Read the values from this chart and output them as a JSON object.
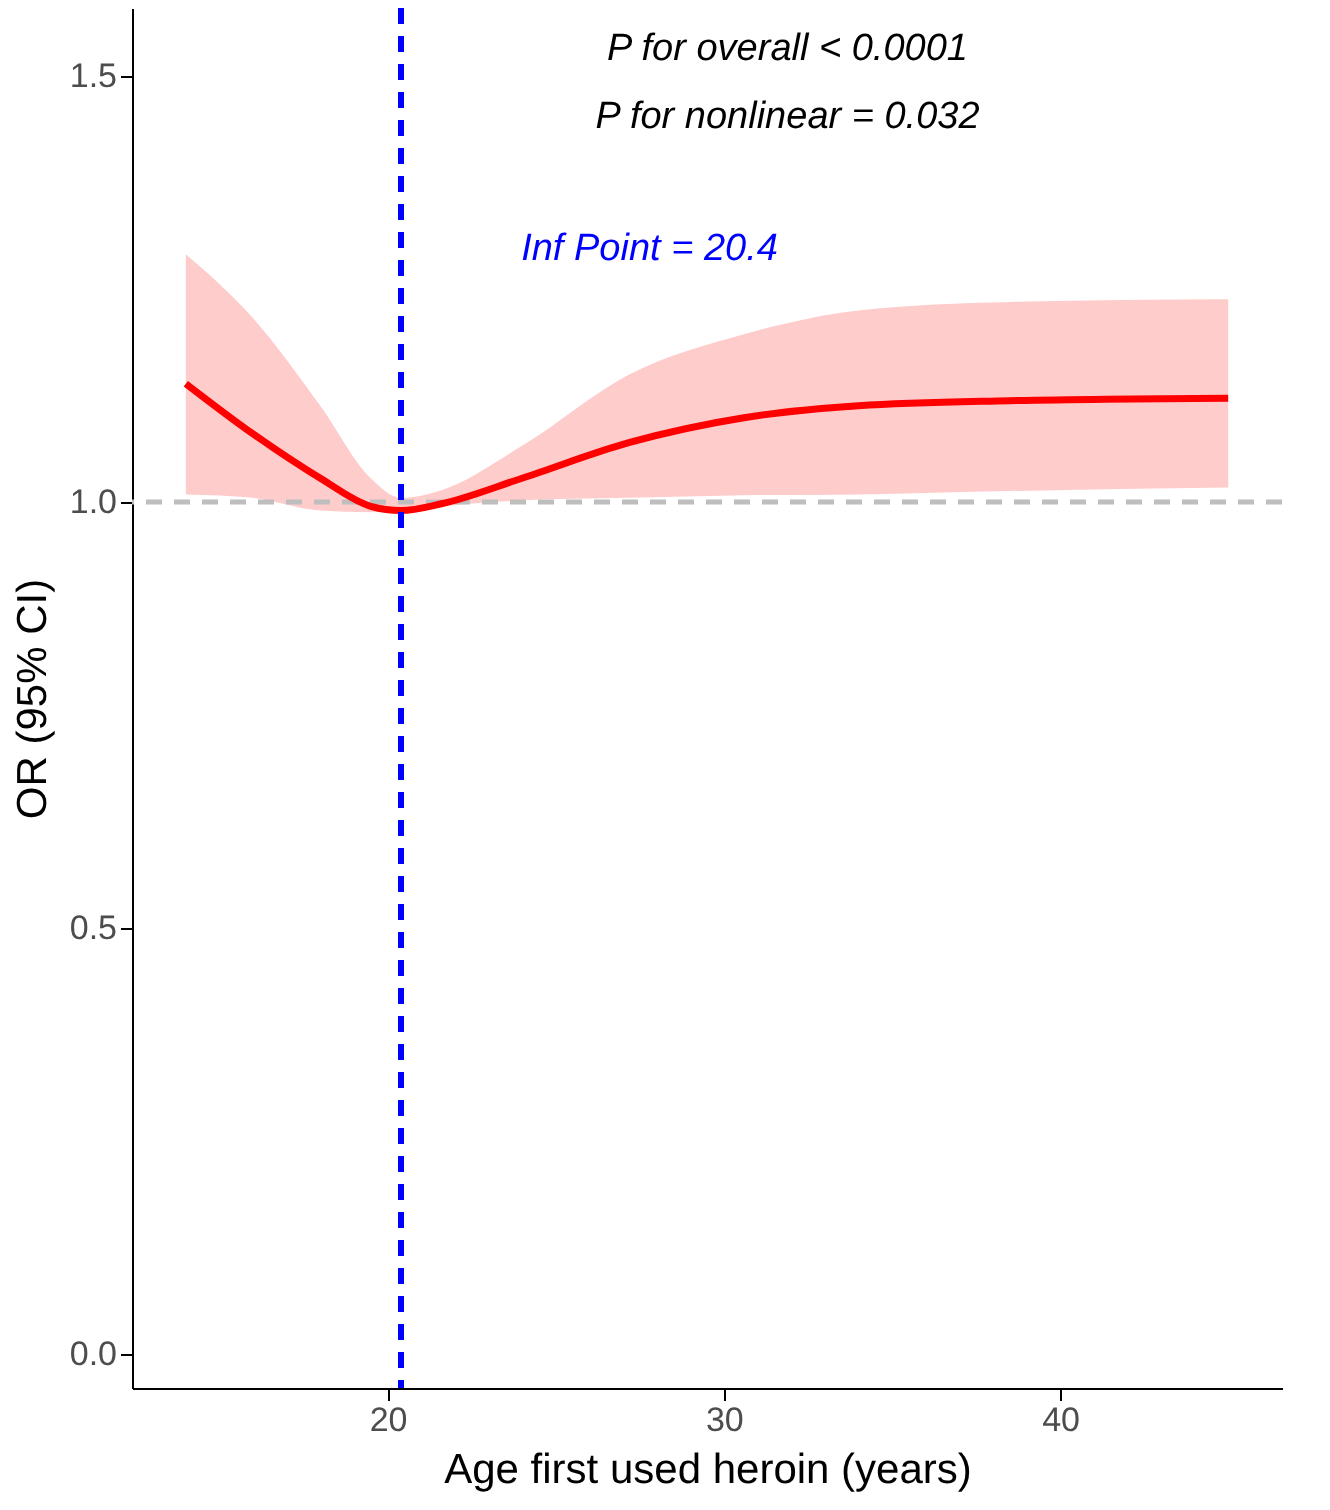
{
  "chart_data": {
    "type": "line",
    "xlabel": "Age first used heroin (years)",
    "ylabel": "OR (95% CI)",
    "x": [
      14,
      16,
      18,
      19.5,
      20.4,
      21.6,
      24,
      27.2,
      30.6,
      34,
      38.5,
      45
    ],
    "series": [
      {
        "color": "#ff0000",
        "values": [
          1.139,
          1.08,
          1.028,
          0.995,
          0.99,
          0.998,
          1.028,
          1.07,
          1.099,
          1.113,
          1.119,
          1.122
        ],
        "lower": [
          1.009,
          1.005,
          0.99,
          0.988,
          0.99,
          0.995,
          1.002,
          1.005,
          1.008,
          1.009,
          1.013,
          1.017
        ],
        "upper": [
          1.291,
          1.216,
          1.113,
          1.028,
          1.005,
          1.014,
          1.066,
          1.15,
          1.197,
          1.225,
          1.235,
          1.238
        ]
      }
    ],
    "xlim": [
      12.4,
      46.6
    ],
    "xticks": [
      20,
      30,
      40
    ],
    "ylim": [
      -0.04,
      1.58
    ],
    "yticks": [
      {
        "value": 0,
        "label": "0.0"
      },
      0.5,
      {
        "value": 1,
        "label": "1.0"
      },
      1.5
    ],
    "ref_lines": [
      {
        "axis": "x",
        "value": 20.4,
        "label": "Inf Point = 20.4",
        "color": "#0000ff",
        "line_style": "dashed"
      },
      {
        "axis": "y",
        "value": 1.0,
        "color": "#bebebe",
        "line_style": "dashed"
      }
    ],
    "annotations": [
      "P for overall < 0.0001",
      "P for nonlinear = 0.032"
    ],
    "grid": false,
    "marker": "none",
    "line_style": "solid"
  }
}
